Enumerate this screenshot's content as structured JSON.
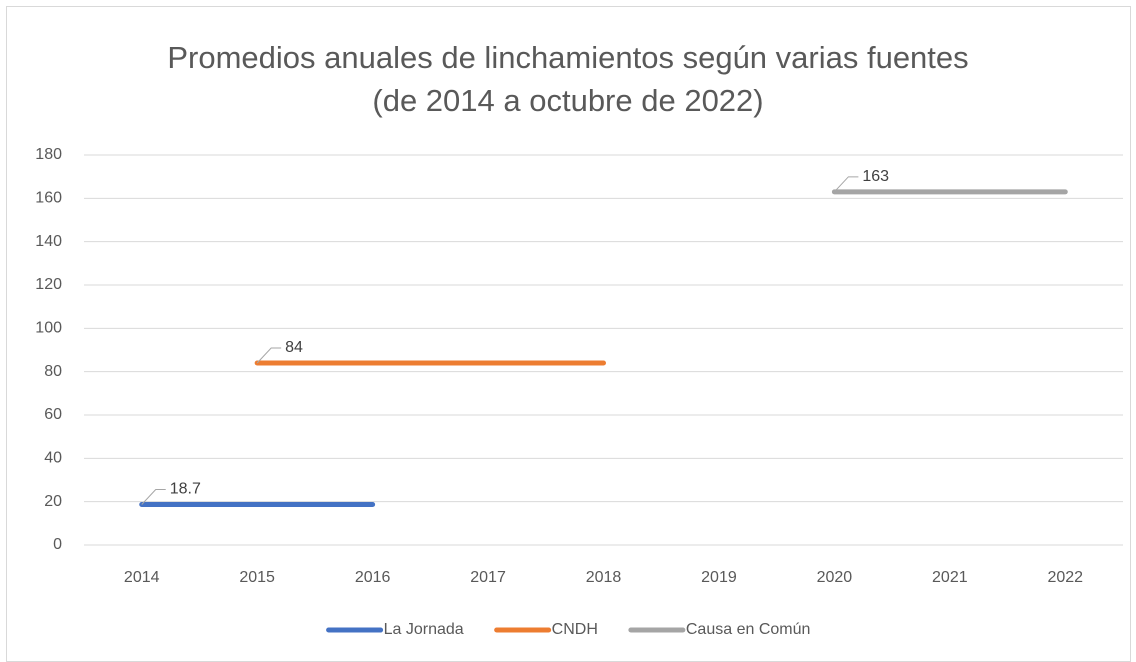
{
  "chart_data": {
    "type": "line",
    "title": "Promedios anuales de linchamientos según varias fuentes",
    "subtitle": "(de 2014 a octubre de 2022)",
    "categories": [
      "2014",
      "2015",
      "2016",
      "2017",
      "2018",
      "2019",
      "2020",
      "2021",
      "2022"
    ],
    "series": [
      {
        "name": "La Jornada",
        "color": "#4472c4",
        "values": [
          18.7,
          18.7,
          18.7,
          null,
          null,
          null,
          null,
          null,
          null
        ]
      },
      {
        "name": "CNDH",
        "color": "#ed7d31",
        "values": [
          null,
          84,
          84,
          84,
          84,
          null,
          null,
          null,
          null
        ]
      },
      {
        "name": "Causa en Común",
        "color": "#a5a5a5",
        "values": [
          null,
          null,
          null,
          null,
          null,
          null,
          163,
          163,
          163
        ]
      }
    ],
    "ylim": [
      0,
      180
    ],
    "yticks": [
      0,
      20,
      40,
      60,
      80,
      100,
      120,
      140,
      160,
      180
    ],
    "grid": true,
    "legend": "bottom"
  }
}
